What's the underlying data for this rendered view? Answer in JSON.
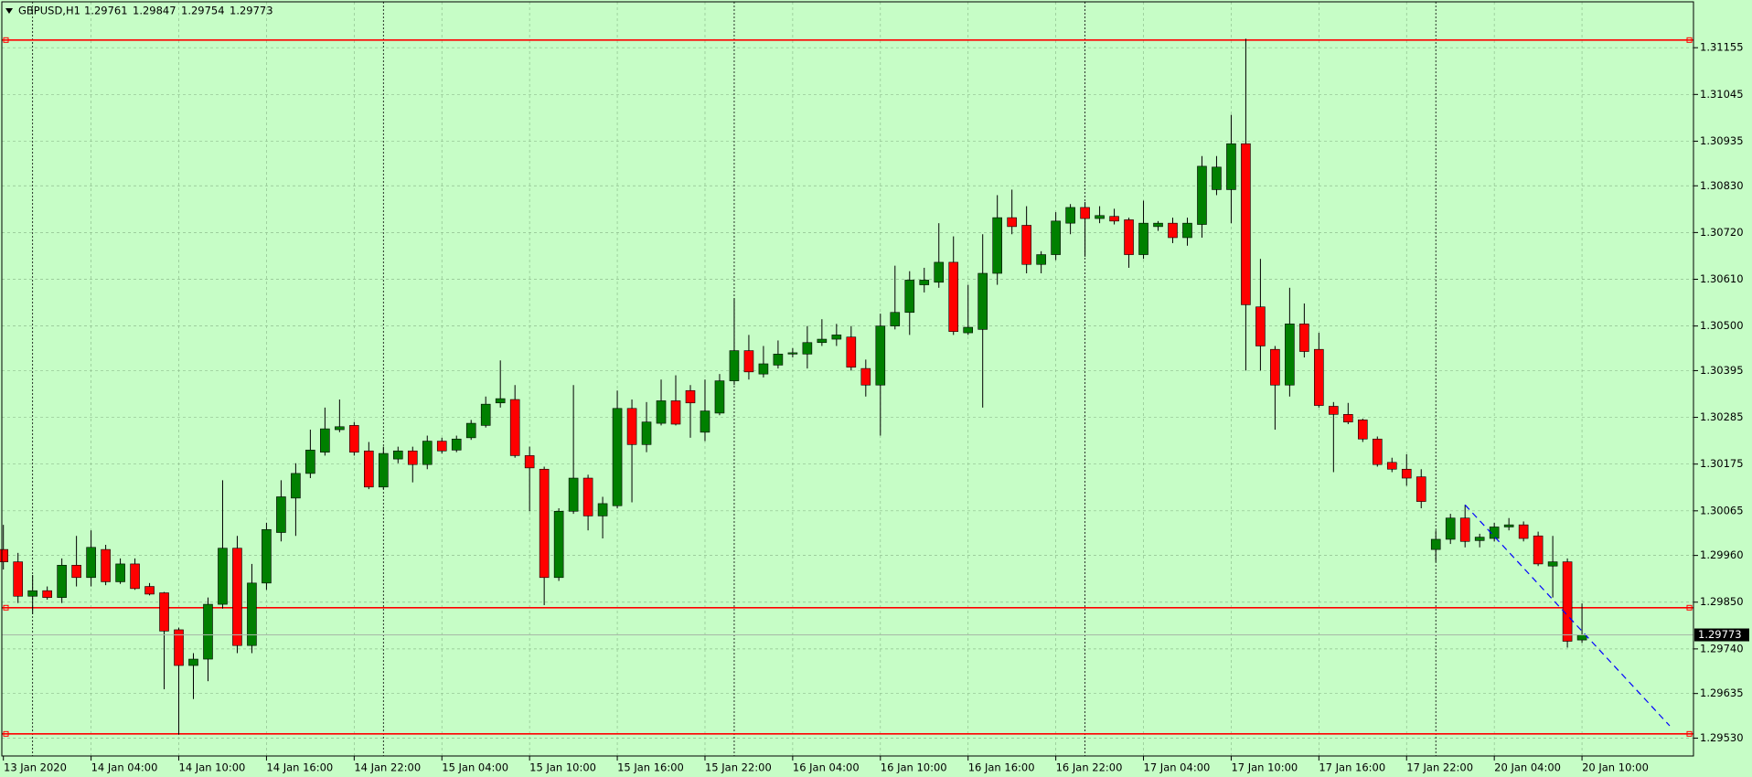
{
  "chart_data": {
    "type": "candlestick",
    "title": "GBPUSD,H1",
    "up_color": "#008000",
    "down_color": "#ff0000",
    "grid": true,
    "ylim": [
      1.29488,
      1.31263
    ],
    "yticks": [
      1.31155,
      1.31045,
      1.30935,
      {
        "value": 1.3083,
        "label": "1.30830"
      },
      {
        "value": 1.3072,
        "label": "1.30720"
      },
      {
        "value": 1.3061,
        "label": "1.30610"
      },
      {
        "value": 1.305,
        "label": "1.30500"
      },
      1.30395,
      1.30285,
      1.30175,
      1.30065,
      {
        "value": 1.2996,
        "label": "1.29960"
      },
      {
        "value": 1.2985,
        "label": "1.29850"
      },
      {
        "value": 1.2974,
        "label": "1.29740"
      },
      1.29635,
      {
        "value": 1.2953,
        "label": "1.29530"
      }
    ],
    "categories": [
      "13 Jan 2020",
      null,
      null,
      null,
      null,
      null,
      "14 Jan 04:00",
      null,
      null,
      null,
      null,
      null,
      "14 Jan 10:00",
      null,
      null,
      null,
      null,
      null,
      "14 Jan 16:00",
      null,
      null,
      null,
      null,
      null,
      "14 Jan 22:00",
      null,
      null,
      null,
      null,
      null,
      "15 Jan 04:00",
      null,
      null,
      null,
      null,
      null,
      "15 Jan 10:00",
      null,
      null,
      null,
      null,
      null,
      "15 Jan 16:00",
      null,
      null,
      null,
      null,
      null,
      "15 Jan 22:00",
      null,
      null,
      null,
      null,
      null,
      "16 Jan 04:00",
      null,
      null,
      null,
      null,
      null,
      "16 Jan 10:00",
      null,
      null,
      null,
      null,
      null,
      "16 Jan 16:00",
      null,
      null,
      null,
      null,
      null,
      "16 Jan 22:00",
      null,
      null,
      null,
      null,
      null,
      "17 Jan 04:00",
      null,
      null,
      null,
      null,
      null,
      "17 Jan 10:00",
      null,
      null,
      null,
      null,
      null,
      "17 Jan 16:00",
      null,
      null,
      null,
      null,
      null,
      "17 Jan 22:00",
      null,
      null,
      null,
      null,
      null,
      "20 Jan 04:00",
      null,
      null,
      null,
      null,
      null,
      "20 Jan 10:00"
    ],
    "ohlc": [
      [
        1.29974,
        1.30032,
        1.29927,
        1.29945
      ],
      [
        1.29945,
        1.29966,
        1.29848,
        1.29864
      ],
      [
        1.29864,
        1.29914,
        1.29822,
        1.29877
      ],
      [
        1.29877,
        1.29887,
        1.29856,
        1.29861
      ],
      [
        1.29861,
        1.29953,
        1.29848,
        1.29937
      ],
      [
        1.29937,
        1.30006,
        1.29887,
        1.29908
      ],
      [
        1.29908,
        1.30019,
        1.29887,
        1.29979
      ],
      [
        1.29974,
        1.29985,
        1.2989,
        1.29898
      ],
      [
        1.29898,
        1.29953,
        1.29893,
        1.2994
      ],
      [
        1.2994,
        1.29953,
        1.29879,
        1.29882
      ],
      [
        1.29887,
        1.29895,
        1.29866,
        1.29869
      ],
      [
        1.29872,
        1.29874,
        1.29645,
        1.29782
      ],
      [
        1.29785,
        1.2979,
        1.29538,
        1.29701
      ],
      [
        1.29701,
        1.2973,
        1.29622,
        1.29716
      ],
      [
        1.29716,
        1.29861,
        1.29664,
        1.29845
      ],
      [
        1.29845,
        1.30137,
        1.29835,
        1.29977
      ],
      [
        1.29977,
        1.30006,
        1.2973,
        1.29748
      ],
      [
        1.29748,
        1.2994,
        1.2973,
        1.29895
      ],
      [
        1.29895,
        1.30037,
        1.29879,
        1.30021
      ],
      [
        1.30014,
        1.30137,
        1.29993,
        1.30098
      ],
      [
        1.30095,
        1.30177,
        1.30006,
        1.30153
      ],
      [
        1.30153,
        1.30256,
        1.30142,
        1.30208
      ],
      [
        1.30203,
        1.30308,
        1.30195,
        1.30258
      ],
      [
        1.30256,
        1.30327,
        1.3025,
        1.30263
      ],
      [
        1.30266,
        1.30274,
        1.30195,
        1.30203
      ],
      [
        1.30206,
        1.30227,
        1.30116,
        1.30121
      ],
      [
        1.30121,
        1.30216,
        1.30116,
        1.302
      ],
      [
        1.30187,
        1.30216,
        1.30177,
        1.30206
      ],
      [
        1.30206,
        1.30216,
        1.30132,
        1.30174
      ],
      [
        1.30174,
        1.30242,
        1.30163,
        1.30229
      ],
      [
        1.30229,
        1.30237,
        1.302,
        1.30206
      ],
      [
        1.30208,
        1.30242,
        1.30203,
        1.30234
      ],
      [
        1.30237,
        1.30279,
        1.30232,
        1.30271
      ],
      [
        1.30266,
        1.30334,
        1.30261,
        1.30316
      ],
      [
        1.30319,
        1.30419,
        1.30308,
        1.30329
      ],
      [
        1.30327,
        1.30361,
        1.3019,
        1.30195
      ],
      [
        1.30195,
        1.30216,
        1.30064,
        1.30166
      ],
      [
        1.30163,
        1.30169,
        1.29843,
        1.29908
      ],
      [
        1.29908,
        1.30071,
        1.299,
        1.30064
      ],
      [
        1.30064,
        1.30361,
        1.30058,
        1.30142
      ],
      [
        1.30142,
        1.3015,
        1.30019,
        1.30053
      ],
      [
        1.30053,
        1.30098,
        1.3,
        1.30082
      ],
      [
        1.30077,
        1.30348,
        1.30071,
        1.30306
      ],
      [
        1.30306,
        1.30327,
        1.30085,
        1.30221
      ],
      [
        1.30221,
        1.30321,
        1.30203,
        1.30274
      ],
      [
        1.30271,
        1.30374,
        1.30266,
        1.30324
      ],
      [
        1.30324,
        1.30384,
        1.30266,
        1.30269
      ],
      [
        1.30348,
        1.30361,
        1.30237,
        1.30319
      ],
      [
        1.3025,
        1.30374,
        1.30229,
        1.303
      ],
      [
        1.30295,
        1.30387,
        1.3029,
        1.30371
      ],
      [
        1.30371,
        1.30566,
        1.30361,
        1.30442
      ],
      [
        1.30442,
        1.30479,
        1.30374,
        1.30392
      ],
      [
        1.30387,
        1.30453,
        1.30379,
        1.30411
      ],
      [
        1.30408,
        1.30466,
        1.304,
        1.30434
      ],
      [
        1.30434,
        1.30448,
        1.30426,
        1.30437
      ],
      [
        1.30434,
        1.305,
        1.304,
        1.30461
      ],
      [
        1.30461,
        1.30516,
        1.30453,
        1.30469
      ],
      [
        1.30469,
        1.30505,
        1.30453,
        1.30479
      ],
      [
        1.30474,
        1.305,
        1.30395,
        1.30403
      ],
      [
        1.304,
        1.30421,
        1.30334,
        1.30361
      ],
      [
        1.30361,
        1.30529,
        1.30242,
        1.305
      ],
      [
        1.305,
        1.30642,
        1.30492,
        1.30532
      ],
      [
        1.30532,
        1.30629,
        1.30479,
        1.30608
      ],
      [
        1.30597,
        1.30637,
        1.30579,
        1.30608
      ],
      [
        1.30603,
        1.30742,
        1.3059,
        1.3065
      ],
      [
        1.3065,
        1.30711,
        1.30479,
        1.30487
      ],
      [
        1.30484,
        1.30597,
        1.30479,
        1.30497
      ],
      [
        1.30492,
        1.30716,
        1.30308,
        1.30624
      ],
      [
        1.30624,
        1.30808,
        1.30597,
        1.30755
      ],
      [
        1.30755,
        1.30821,
        1.30716,
        1.30734
      ],
      [
        1.30737,
        1.30782,
        1.30624,
        1.30645
      ],
      [
        1.30645,
        1.30676,
        1.30624,
        1.30668
      ],
      [
        1.30668,
        1.30768,
        1.30655,
        1.30747
      ],
      [
        1.30742,
        1.30787,
        1.30716,
        1.30779
      ],
      [
        1.30779,
        1.30792,
        1.30663,
        1.30753
      ],
      [
        1.30753,
        1.30782,
        1.30742,
        1.3076
      ],
      [
        1.30758,
        1.30776,
        1.30739,
        1.30747
      ],
      [
        1.3075,
        1.30755,
        1.30637,
        1.30668
      ],
      [
        1.30668,
        1.30795,
        1.30658,
        1.30742
      ],
      [
        1.30734,
        1.30747,
        1.30724,
        1.30742
      ],
      [
        1.30742,
        1.30755,
        1.30695,
        1.30708
      ],
      [
        1.30708,
        1.30755,
        1.30689,
        1.30742
      ],
      [
        1.30739,
        1.309,
        1.30708,
        1.30876
      ],
      [
        1.30821,
        1.309,
        1.30808,
        1.30874
      ],
      [
        1.30821,
        1.30997,
        1.30742,
        1.30929
      ],
      [
        1.30929,
        1.31176,
        1.30395,
        1.3055
      ],
      [
        1.30545,
        1.30658,
        1.30395,
        1.30453
      ],
      [
        1.30445,
        1.30453,
        1.30256,
        1.30361
      ],
      [
        1.30361,
        1.3059,
        1.30334,
        1.30505
      ],
      [
        1.30505,
        1.30553,
        1.30426,
        1.3044
      ],
      [
        1.30445,
        1.30484,
        1.30308,
        1.30313
      ],
      [
        1.30311,
        1.30321,
        1.30156,
        1.30292
      ],
      [
        1.30292,
        1.30319,
        1.30269,
        1.30274
      ],
      [
        1.30279,
        1.30282,
        1.30227,
        1.30234
      ],
      [
        1.30234,
        1.3024,
        1.30169,
        1.30174
      ],
      [
        1.30179,
        1.3019,
        1.30156,
        1.30163
      ],
      [
        1.30163,
        1.30198,
        1.30124,
        1.30142
      ],
      [
        1.30145,
        1.30163,
        1.30071,
        1.30087
      ],
      [
        1.29974,
        1.30019,
        1.29945,
        1.29998
      ],
      [
        1.29998,
        1.30058,
        1.29987,
        1.30048
      ],
      [
        1.30048,
        1.30079,
        1.29979,
        1.29993
      ],
      [
        1.29995,
        1.30011,
        1.29979,
        1.30003
      ],
      [
        1.3,
        1.30037,
        1.29993,
        1.30027
      ],
      [
        1.30027,
        1.30048,
        1.30019,
        1.30032
      ],
      [
        1.30032,
        1.3004,
        1.29993,
        1.3
      ],
      [
        1.30006,
        1.30016,
        1.29935,
        1.2994
      ],
      [
        1.29935,
        1.30006,
        1.29861,
        1.29945
      ],
      [
        1.29945,
        1.29953,
        1.29743,
        1.29758
      ],
      [
        1.29761,
        1.29847,
        1.29754,
        1.29773
      ]
    ],
    "hlines": {
      "color": "#ff0000",
      "values": [
        1.31173,
        1.29837,
        1.2954
      ]
    },
    "trendline": {
      "color": "#0000ff",
      "x": [
        100,
        114
      ],
      "y": [
        1.30079,
        1.29559
      ]
    }
  }
}
